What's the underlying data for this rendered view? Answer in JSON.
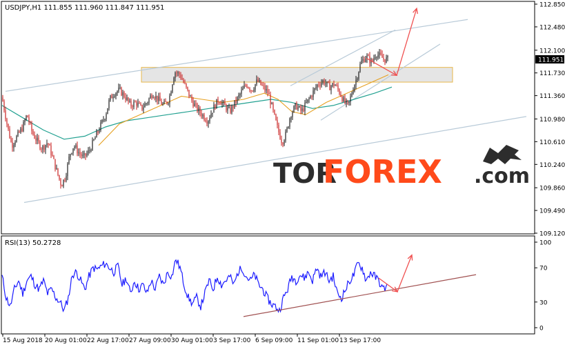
{
  "chart_data": [
    {
      "type": "candlestick",
      "title": "USDJPY,H1  111.855 111.960 111.847 111.951",
      "symbol": "USDJPY,H1",
      "ohlc": {
        "open": 111.855,
        "high": 111.96,
        "low": 111.847,
        "close": 111.951
      },
      "current_price_label": "111.951",
      "ylim": [
        109.12,
        112.85
      ],
      "yticks": [
        "112.850",
        "112.480",
        "112.100",
        "111.730",
        "111.360",
        "110.980",
        "110.610",
        "110.240",
        "109.860",
        "109.490",
        "109.120"
      ],
      "close_path": [
        [
          0,
          111.33
        ],
        [
          8,
          110.85
        ],
        [
          14,
          110.55
        ],
        [
          22,
          110.7
        ],
        [
          30,
          110.85
        ],
        [
          36,
          111.05
        ],
        [
          44,
          110.75
        ],
        [
          52,
          110.6
        ],
        [
          58,
          110.5
        ],
        [
          66,
          110.6
        ],
        [
          72,
          110.4
        ],
        [
          80,
          110.1
        ],
        [
          86,
          109.9
        ],
        [
          92,
          110.05
        ],
        [
          98,
          110.4
        ],
        [
          104,
          110.55
        ],
        [
          110,
          110.45
        ],
        [
          118,
          110.35
        ],
        [
          126,
          110.45
        ],
        [
          134,
          110.65
        ],
        [
          142,
          110.85
        ],
        [
          150,
          111.05
        ],
        [
          156,
          111.3
        ],
        [
          162,
          111.4
        ],
        [
          170,
          111.45
        ],
        [
          178,
          111.35
        ],
        [
          186,
          111.2
        ],
        [
          194,
          111.25
        ],
        [
          202,
          111.15
        ],
        [
          210,
          111.25
        ],
        [
          218,
          111.4
        ],
        [
          226,
          111.3
        ],
        [
          234,
          111.2
        ],
        [
          242,
          111.3
        ],
        [
          250,
          111.75
        ],
        [
          258,
          111.7
        ],
        [
          266,
          111.5
        ],
        [
          274,
          111.3
        ],
        [
          282,
          111.15
        ],
        [
          290,
          111.05
        ],
        [
          298,
          110.95
        ],
        [
          306,
          111.15
        ],
        [
          314,
          111.3
        ],
        [
          322,
          111.2
        ],
        [
          330,
          111.1
        ],
        [
          338,
          111.25
        ],
        [
          346,
          111.4
        ],
        [
          354,
          111.55
        ],
        [
          362,
          111.45
        ],
        [
          370,
          111.6
        ],
        [
          378,
          111.5
        ],
        [
          386,
          111.4
        ],
        [
          394,
          111.05
        ],
        [
          400,
          110.8
        ],
        [
          406,
          110.6
        ],
        [
          412,
          110.75
        ],
        [
          418,
          111.05
        ],
        [
          426,
          111.2
        ],
        [
          434,
          111.1
        ],
        [
          442,
          111.25
        ],
        [
          450,
          111.4
        ],
        [
          458,
          111.55
        ],
        [
          466,
          111.6
        ],
        [
          474,
          111.5
        ],
        [
          482,
          111.55
        ],
        [
          490,
          111.4
        ],
        [
          496,
          111.25
        ],
        [
          502,
          111.2
        ],
        [
          508,
          111.45
        ],
        [
          514,
          111.65
        ],
        [
          520,
          111.9
        ],
        [
          528,
          112.0
        ],
        [
          536,
          111.9
        ],
        [
          542,
          112.05
        ],
        [
          548,
          112.0
        ],
        [
          554,
          111.95
        ],
        [
          560,
          111.951
        ]
      ],
      "ma_fast": [
        [
          140,
          110.55
        ],
        [
          170,
          110.9
        ],
        [
          200,
          111.05
        ],
        [
          230,
          111.2
        ],
        [
          260,
          111.35
        ],
        [
          290,
          111.3
        ],
        [
          320,
          111.25
        ],
        [
          350,
          111.3
        ],
        [
          380,
          111.4
        ],
        [
          400,
          111.3
        ],
        [
          420,
          111.1
        ],
        [
          440,
          111.05
        ],
        [
          470,
          111.25
        ],
        [
          500,
          111.4
        ],
        [
          530,
          111.55
        ],
        [
          560,
          111.7
        ]
      ],
      "ma_slow": [
        [
          0,
          111.2
        ],
        [
          30,
          111.0
        ],
        [
          60,
          110.8
        ],
        [
          90,
          110.65
        ],
        [
          120,
          110.7
        ],
        [
          150,
          110.85
        ],
        [
          180,
          110.95
        ],
        [
          210,
          111.0
        ],
        [
          240,
          111.05
        ],
        [
          270,
          111.1
        ],
        [
          300,
          111.15
        ],
        [
          330,
          111.2
        ],
        [
          360,
          111.25
        ],
        [
          390,
          111.3
        ],
        [
          420,
          111.25
        ],
        [
          450,
          111.15
        ],
        [
          480,
          111.2
        ],
        [
          510,
          111.3
        ],
        [
          540,
          111.4
        ],
        [
          565,
          111.5
        ]
      ],
      "resistance_zone": {
        "x": [
          202,
          653
        ],
        "y": [
          111.58,
          111.82
        ]
      },
      "channel_lines": [
        {
          "from": [
            5,
            111.43
          ],
          "to": [
            675,
            112.6
          ]
        },
        {
          "from": [
            32,
            109.62
          ],
          "to": [
            760,
            111.02
          ]
        },
        {
          "from": [
            418,
            111.52
          ],
          "to": [
            570,
            112.43
          ]
        },
        {
          "from": [
            462,
            110.96
          ],
          "to": [
            635,
            112.2
          ]
        }
      ],
      "forecast_arrows": [
        {
          "points": [
            [
              528,
              111.97
            ],
            [
              572,
              111.69
            ],
            [
              601,
              112.78
            ]
          ]
        }
      ]
    },
    {
      "type": "line",
      "title": "RSI(13) 50.2728",
      "ylim": [
        0,
        100
      ],
      "yticks": [
        "100",
        "70",
        "30",
        "0"
      ],
      "rsi_path": [
        [
          0,
          60
        ],
        [
          6,
          35
        ],
        [
          12,
          25
        ],
        [
          18,
          45
        ],
        [
          24,
          55
        ],
        [
          30,
          40
        ],
        [
          36,
          55
        ],
        [
          42,
          60
        ],
        [
          48,
          50
        ],
        [
          54,
          45
        ],
        [
          60,
          55
        ],
        [
          66,
          40
        ],
        [
          72,
          45
        ],
        [
          78,
          35
        ],
        [
          84,
          30
        ],
        [
          90,
          20
        ],
        [
          96,
          35
        ],
        [
          102,
          62
        ],
        [
          108,
          65
        ],
        [
          114,
          55
        ],
        [
          120,
          45
        ],
        [
          126,
          60
        ],
        [
          132,
          70
        ],
        [
          138,
          68
        ],
        [
          144,
          72
        ],
        [
          150,
          75
        ],
        [
          156,
          70
        ],
        [
          162,
          65
        ],
        [
          168,
          72
        ],
        [
          174,
          50
        ],
        [
          180,
          58
        ],
        [
          186,
          40
        ],
        [
          192,
          55
        ],
        [
          198,
          45
        ],
        [
          204,
          50
        ],
        [
          210,
          40
        ],
        [
          216,
          55
        ],
        [
          222,
          45
        ],
        [
          228,
          60
        ],
        [
          234,
          50
        ],
        [
          240,
          65
        ],
        [
          246,
          60
        ],
        [
          252,
          80
        ],
        [
          258,
          70
        ],
        [
          264,
          50
        ],
        [
          270,
          35
        ],
        [
          276,
          28
        ],
        [
          282,
          35
        ],
        [
          288,
          25
        ],
        [
          294,
          40
        ],
        [
          300,
          55
        ],
        [
          306,
          45
        ],
        [
          312,
          60
        ],
        [
          318,
          50
        ],
        [
          324,
          55
        ],
        [
          330,
          60
        ],
        [
          336,
          50
        ],
        [
          342,
          65
        ],
        [
          348,
          70
        ],
        [
          354,
          60
        ],
        [
          360,
          55
        ],
        [
          366,
          62
        ],
        [
          372,
          50
        ],
        [
          378,
          45
        ],
        [
          384,
          35
        ],
        [
          390,
          28
        ],
        [
          396,
          25
        ],
        [
          402,
          20
        ],
        [
          408,
          35
        ],
        [
          414,
          45
        ],
        [
          420,
          60
        ],
        [
          426,
          55
        ],
        [
          432,
          62
        ],
        [
          438,
          58
        ],
        [
          444,
          65
        ],
        [
          450,
          55
        ],
        [
          456,
          70
        ],
        [
          462,
          60
        ],
        [
          468,
          65
        ],
        [
          474,
          55
        ],
        [
          480,
          60
        ],
        [
          486,
          40
        ],
        [
          492,
          35
        ],
        [
          498,
          45
        ],
        [
          504,
          55
        ],
        [
          510,
          62
        ],
        [
          516,
          75
        ],
        [
          522,
          70
        ],
        [
          528,
          55
        ],
        [
          534,
          65
        ],
        [
          540,
          60
        ],
        [
          546,
          55
        ],
        [
          552,
          45
        ],
        [
          558,
          48
        ]
      ],
      "trend_line": {
        "from": [
          350,
          13
        ],
        "to": [
          687,
          62
        ]
      },
      "forecast_arrow": {
        "points": [
          [
            546,
            58
          ],
          [
            573,
            42
          ],
          [
            594,
            85
          ]
        ]
      },
      "xticks": [
        "15 Aug 2018",
        "20 Aug 01:00",
        "22 Aug 17:00",
        "27 Aug 09:00",
        "30 Aug 01:00",
        "3 Sep 17:00",
        "6 Sep 09:00",
        "11 Sep 01:00",
        "13 Sep 17:00"
      ]
    }
  ],
  "watermark": {
    "prefix": "TOR",
    "brand": "FOREX",
    "suffix": ".com"
  },
  "colors": {
    "bull": "#1a1a1a",
    "bear": "#c81e1e",
    "ma_fast": "#e6a020",
    "ma_slow": "#20a090",
    "channel": "#b8cad8",
    "zone_fill": "#dcdcdc",
    "zone_border": "#e8b84a",
    "arrow": "#f05050",
    "rsi": "#1a1aff",
    "rsi_trend": "#a05050",
    "brand": "#ff4a1a",
    "dark": "#2d2d2d"
  }
}
